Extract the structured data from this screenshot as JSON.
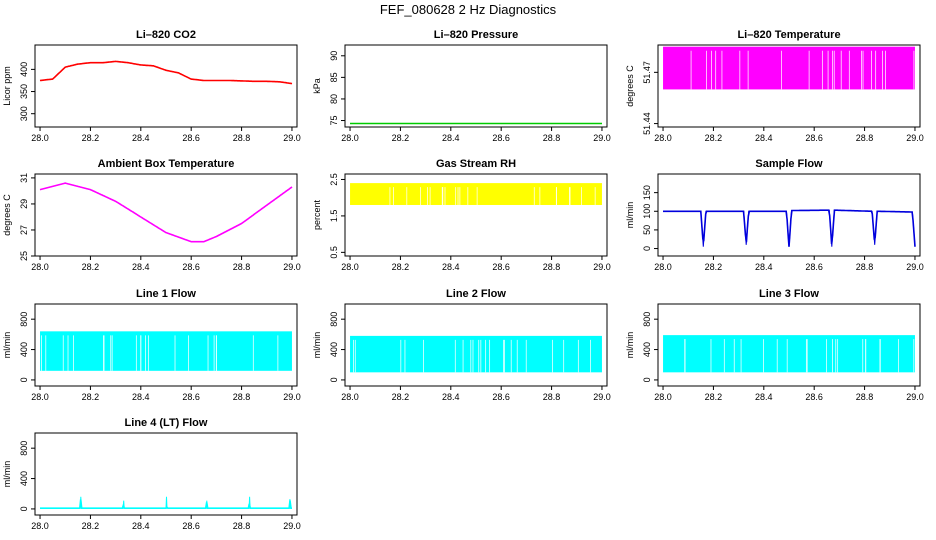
{
  "page_title": "FEF_080628  2 Hz Diagnostics",
  "colors": {
    "red": "#ff0000",
    "green": "#00cc00",
    "magenta": "#ff00ff",
    "yellow": "#ffff00",
    "blue": "#0000dd",
    "cyan": "#00ffff"
  },
  "chart_data": [
    {
      "type": "line",
      "title": "Li–820 CO2",
      "xlabel": "",
      "ylabel": "Licor ppm",
      "color": "red",
      "xlim": [
        27.98,
        29.02
      ],
      "ylim": [
        270,
        455
      ],
      "xticks": [
        "28.0",
        "28.2",
        "28.4",
        "28.6",
        "28.8",
        "29.0"
      ],
      "xtick_values": [
        28.0,
        28.2,
        28.4,
        28.6,
        28.8,
        29.0
      ],
      "yticks": [
        "300",
        "350",
        "400"
      ],
      "ytick_values": [
        300,
        350,
        400
      ],
      "series": [
        {
          "x": [
            28.0,
            28.05,
            28.1,
            28.15,
            28.2,
            28.25,
            28.3,
            28.35,
            28.4,
            28.45,
            28.5,
            28.55,
            28.6,
            28.65,
            28.7,
            28.75,
            28.8,
            28.85,
            28.9,
            28.95,
            29.0
          ],
          "y": [
            375,
            378,
            405,
            412,
            415,
            415,
            418,
            415,
            410,
            408,
            398,
            392,
            378,
            375,
            375,
            375,
            374,
            373,
            373,
            372,
            368
          ]
        }
      ]
    },
    {
      "type": "line",
      "title": "Li–820 Pressure",
      "xlabel": "",
      "ylabel": "kPa",
      "color": "green",
      "xlim": [
        27.98,
        29.02
      ],
      "ylim": [
        73.5,
        92.5
      ],
      "xticks": [
        "28.0",
        "28.2",
        "28.4",
        "28.6",
        "28.8",
        "29.0"
      ],
      "xtick_values": [
        28.0,
        28.2,
        28.4,
        28.6,
        28.8,
        29.0
      ],
      "yticks": [
        "75",
        "80",
        "85",
        "90"
      ],
      "ytick_values": [
        75,
        80,
        85,
        90
      ],
      "series": [
        {
          "x": [
            28.0,
            28.1,
            28.2,
            28.3,
            28.4,
            28.5,
            28.6,
            28.7,
            28.8,
            28.9,
            29.0
          ],
          "y": [
            74.3,
            74.3,
            74.3,
            74.3,
            74.3,
            74.3,
            74.3,
            74.3,
            74.3,
            74.3,
            74.3
          ]
        }
      ]
    },
    {
      "type": "area",
      "title": "Li–820 Temperature",
      "xlabel": "",
      "ylabel": "degrees C",
      "color": "magenta",
      "xlim": [
        27.98,
        29.02
      ],
      "ylim": [
        51.438,
        51.486
      ],
      "xticks": [
        "28.0",
        "28.2",
        "28.4",
        "28.6",
        "28.8",
        "29.0"
      ],
      "xtick_values": [
        28.0,
        28.2,
        28.4,
        28.6,
        28.8,
        29.0
      ],
      "yticks": [
        "51.44",
        "51.47"
      ],
      "ytick_values": [
        51.44,
        51.47
      ],
      "series": [
        {
          "x": [
            28.0,
            29.0
          ],
          "y_low": [
            51.46,
            51.46
          ],
          "y_high": [
            51.485,
            51.485
          ]
        }
      ]
    },
    {
      "type": "line",
      "title": "Ambient Box Temperature",
      "xlabel": "",
      "ylabel": "degrees C",
      "color": "magenta",
      "xlim": [
        27.98,
        29.02
      ],
      "ylim": [
        25,
        31.3
      ],
      "xticks": [
        "28.0",
        "28.2",
        "28.4",
        "28.6",
        "28.8",
        "29.0"
      ],
      "xtick_values": [
        28.0,
        28.2,
        28.4,
        28.6,
        28.8,
        29.0
      ],
      "yticks": [
        "25",
        "27",
        "29",
        "31"
      ],
      "ytick_values": [
        25,
        27,
        29,
        31
      ],
      "series": [
        {
          "x": [
            28.0,
            28.1,
            28.2,
            28.3,
            28.4,
            28.5,
            28.6,
            28.65,
            28.7,
            28.8,
            28.9,
            29.0
          ],
          "y": [
            30.1,
            30.6,
            30.1,
            29.2,
            28.0,
            26.8,
            26.1,
            26.1,
            26.5,
            27.5,
            28.9,
            30.3
          ]
        }
      ]
    },
    {
      "type": "area",
      "title": "Gas Stream RH",
      "xlabel": "",
      "ylabel": "percent",
      "color": "yellow",
      "xlim": [
        27.98,
        29.02
      ],
      "ylim": [
        0.4,
        2.65
      ],
      "xticks": [
        "28.0",
        "28.2",
        "28.4",
        "28.6",
        "28.8",
        "29.0"
      ],
      "xtick_values": [
        28.0,
        28.2,
        28.4,
        28.6,
        28.8,
        29.0
      ],
      "yticks": [
        "0.5",
        "1.5",
        "2.5"
      ],
      "ytick_values": [
        0.5,
        1.5,
        2.5
      ],
      "series": [
        {
          "x": [
            28.0,
            29.0
          ],
          "y_low": [
            1.8,
            1.8
          ],
          "y_high": [
            2.4,
            2.4
          ]
        }
      ]
    },
    {
      "type": "line",
      "title": "Sample Flow",
      "xlabel": "",
      "ylabel": "ml/min",
      "color": "blue",
      "xlim": [
        27.98,
        29.02
      ],
      "ylim": [
        -20,
        200
      ],
      "xticks": [
        "28.0",
        "28.2",
        "28.4",
        "28.6",
        "28.8",
        "29.0"
      ],
      "xtick_values": [
        28.0,
        28.2,
        28.4,
        28.6,
        28.8,
        29.0
      ],
      "yticks": [
        "0",
        "50",
        "100",
        "150"
      ],
      "ytick_values": [
        0,
        50,
        100,
        150
      ],
      "series": [
        {
          "x": [
            28.0,
            28.15,
            28.16,
            28.17,
            28.32,
            28.33,
            28.34,
            28.49,
            28.5,
            28.51,
            28.66,
            28.67,
            28.68,
            28.83,
            28.84,
            28.85,
            28.99,
            29.0
          ],
          "y": [
            100,
            100,
            5,
            100,
            100,
            10,
            100,
            100,
            5,
            102,
            103,
            5,
            103,
            100,
            10,
            100,
            98,
            5
          ]
        }
      ]
    },
    {
      "type": "area",
      "title": "Line 1 Flow",
      "xlabel": "",
      "ylabel": "ml/min",
      "color": "cyan",
      "xlim": [
        27.98,
        29.02
      ],
      "ylim": [
        -80,
        1000
      ],
      "xticks": [
        "28.0",
        "28.2",
        "28.4",
        "28.6",
        "28.8",
        "29.0"
      ],
      "xtick_values": [
        28.0,
        28.2,
        28.4,
        28.6,
        28.8,
        29.0
      ],
      "yticks": [
        "0",
        "400",
        "800"
      ],
      "ytick_values": [
        0,
        400,
        800
      ],
      "series": [
        {
          "x": [
            28.0,
            29.0
          ],
          "y_low": [
            120,
            120
          ],
          "y_high": [
            640,
            640
          ]
        }
      ]
    },
    {
      "type": "area",
      "title": "Line 2 Flow",
      "xlabel": "",
      "ylabel": "ml/min",
      "color": "cyan",
      "xlim": [
        27.98,
        29.02
      ],
      "ylim": [
        -80,
        1000
      ],
      "xticks": [
        "28.0",
        "28.2",
        "28.4",
        "28.6",
        "28.8",
        "29.0"
      ],
      "xtick_values": [
        28.0,
        28.2,
        28.4,
        28.6,
        28.8,
        29.0
      ],
      "yticks": [
        "0",
        "400",
        "800"
      ],
      "ytick_values": [
        0,
        400,
        800
      ],
      "series": [
        {
          "x": [
            28.0,
            29.0
          ],
          "y_low": [
            100,
            100
          ],
          "y_high": [
            580,
            580
          ]
        }
      ]
    },
    {
      "type": "area",
      "title": "Line 3 Flow",
      "xlabel": "",
      "ylabel": "ml/min",
      "color": "cyan",
      "xlim": [
        27.98,
        29.02
      ],
      "ylim": [
        -80,
        1000
      ],
      "xticks": [
        "28.0",
        "28.2",
        "28.4",
        "28.6",
        "28.8",
        "29.0"
      ],
      "xtick_values": [
        28.0,
        28.2,
        28.4,
        28.6,
        28.8,
        29.0
      ],
      "yticks": [
        "0",
        "400",
        "800"
      ],
      "ytick_values": [
        0,
        400,
        800
      ],
      "series": [
        {
          "x": [
            28.0,
            29.0
          ],
          "y_low": [
            100,
            100
          ],
          "y_high": [
            590,
            590
          ]
        }
      ]
    },
    {
      "type": "line",
      "title": "Line 4 (LT) Flow",
      "xlabel": "",
      "ylabel": "ml/min",
      "color": "cyan",
      "xlim": [
        27.98,
        29.02
      ],
      "ylim": [
        -80,
        1000
      ],
      "xticks": [
        "28.0",
        "28.2",
        "28.4",
        "28.6",
        "28.8",
        "29.0"
      ],
      "xtick_values": [
        28.0,
        28.2,
        28.4,
        28.6,
        28.8,
        29.0
      ],
      "yticks": [
        "0",
        "400",
        "800"
      ],
      "ytick_values": [
        0,
        400,
        800
      ],
      "series": [
        {
          "x": [
            28.0,
            28.16,
            28.162,
            28.164,
            28.33,
            28.332,
            28.334,
            28.5,
            28.502,
            28.504,
            28.66,
            28.662,
            28.664,
            28.83,
            28.832,
            28.834,
            28.99,
            28.992,
            28.994,
            29.0
          ],
          "y": [
            10,
            10,
            160,
            10,
            10,
            110,
            10,
            10,
            160,
            10,
            10,
            110,
            10,
            10,
            160,
            10,
            10,
            130,
            10,
            10
          ]
        }
      ]
    }
  ]
}
